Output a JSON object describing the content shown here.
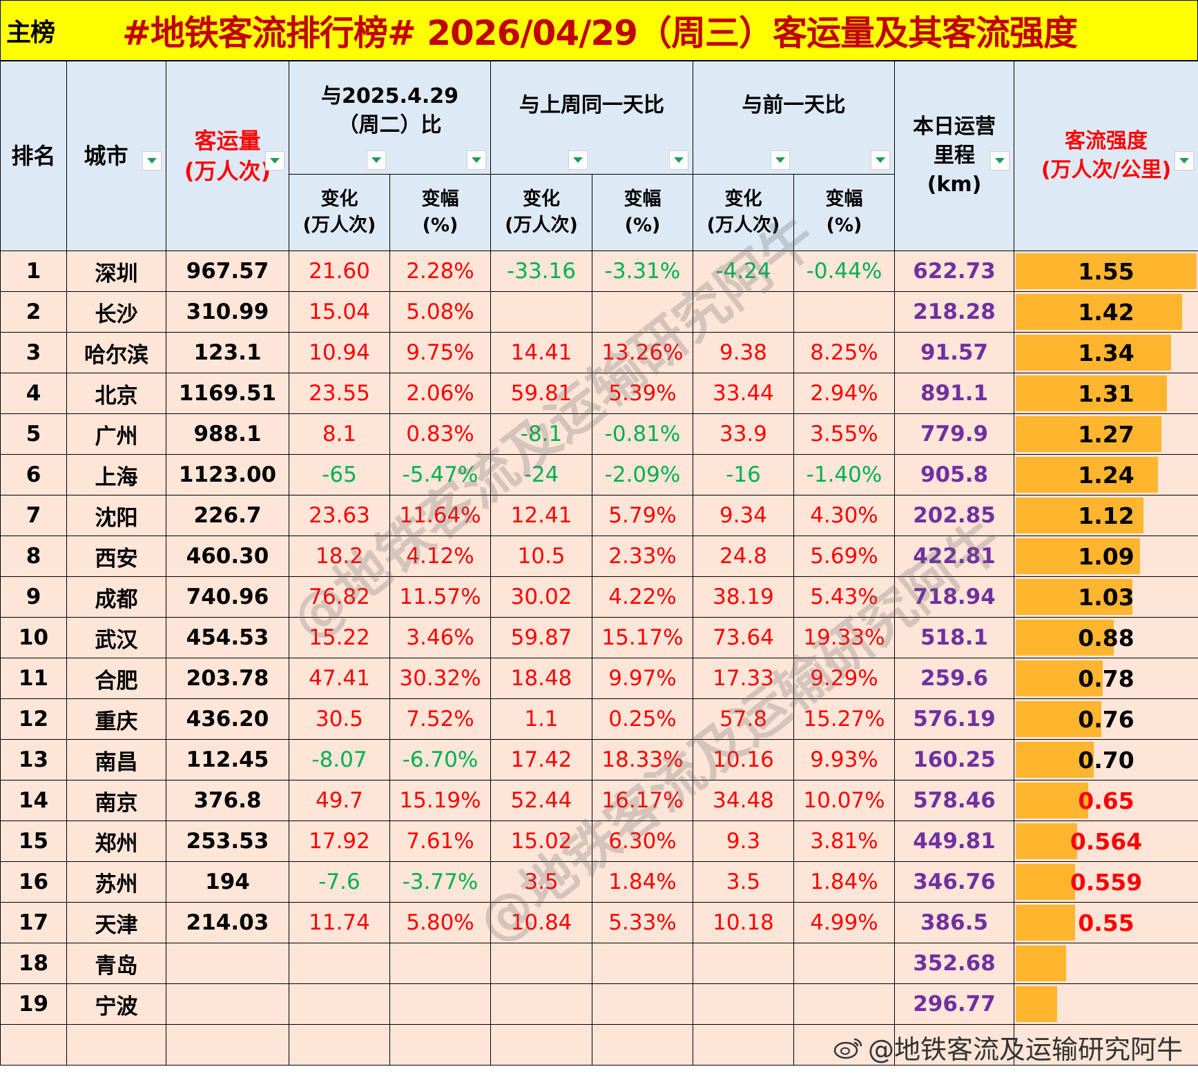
{
  "title_bar": {
    "label": "主榜",
    "title": "#地铁客流排行榜# 2026/04/29（周三）客运量及其客流强度"
  },
  "headers": {
    "rank": "排名",
    "city": "城市",
    "volume": "客运量",
    "volume_unit": "(万人次)",
    "vs_last_year": "与2025.4.29（周二）比",
    "vs_last_week": "与上周同一天比",
    "vs_prev_day": "与前一天比",
    "change": "变化",
    "change_unit": "(万人次)",
    "pct": "变幅",
    "pct_unit": "(%)",
    "mileage": "本日运营里程",
    "mileage_unit": "(km)",
    "intensity": "客流强度",
    "intensity_unit": "(万人次/公里)"
  },
  "colors": {
    "title_bg": "#ffff00",
    "title_text": "#c00000",
    "header_bg": "#dde9f5",
    "row_bg": "#fde5d8",
    "positive": "#ff0000",
    "negative": "#00b050",
    "mileage": "#7030a0",
    "bar": "#ffb52e",
    "filter_arrow": "#1f9a5b"
  },
  "rows": [
    {
      "rank": "1",
      "city": "深圳",
      "volume": "967.57",
      "ly_chg": "21.60",
      "ly_pct": "2.28%",
      "lw_chg": "-33.16",
      "lw_pct": "-3.31%",
      "pd_chg": "-4.24",
      "pd_pct": "-0.44%",
      "mileage": "622.73",
      "intensity": "1.55"
    },
    {
      "rank": "2",
      "city": "长沙",
      "volume": "310.99",
      "ly_chg": "15.04",
      "ly_pct": "5.08%",
      "lw_chg": "",
      "lw_pct": "",
      "pd_chg": "",
      "pd_pct": "",
      "mileage": "218.28",
      "intensity": "1.42"
    },
    {
      "rank": "3",
      "city": "哈尔滨",
      "volume": "123.1",
      "ly_chg": "10.94",
      "ly_pct": "9.75%",
      "lw_chg": "14.41",
      "lw_pct": "13.26%",
      "pd_chg": "9.38",
      "pd_pct": "8.25%",
      "mileage": "91.57",
      "intensity": "1.34"
    },
    {
      "rank": "4",
      "city": "北京",
      "volume": "1169.51",
      "ly_chg": "23.55",
      "ly_pct": "2.06%",
      "lw_chg": "59.81",
      "lw_pct": "5.39%",
      "pd_chg": "33.44",
      "pd_pct": "2.94%",
      "mileage": "891.1",
      "intensity": "1.31"
    },
    {
      "rank": "5",
      "city": "广州",
      "volume": "988.1",
      "ly_chg": "8.1",
      "ly_pct": "0.83%",
      "lw_chg": "-8.1",
      "lw_pct": "-0.81%",
      "pd_chg": "33.9",
      "pd_pct": "3.55%",
      "mileage": "779.9",
      "intensity": "1.27"
    },
    {
      "rank": "6",
      "city": "上海",
      "volume": "1123.00",
      "ly_chg": "-65",
      "ly_pct": "-5.47%",
      "lw_chg": "-24",
      "lw_pct": "-2.09%",
      "pd_chg": "-16",
      "pd_pct": "-1.40%",
      "mileage": "905.8",
      "intensity": "1.24"
    },
    {
      "rank": "7",
      "city": "沈阳",
      "volume": "226.7",
      "ly_chg": "23.63",
      "ly_pct": "11.64%",
      "lw_chg": "12.41",
      "lw_pct": "5.79%",
      "pd_chg": "9.34",
      "pd_pct": "4.30%",
      "mileage": "202.85",
      "intensity": "1.12"
    },
    {
      "rank": "8",
      "city": "西安",
      "volume": "460.30",
      "ly_chg": "18.2",
      "ly_pct": "4.12%",
      "lw_chg": "10.5",
      "lw_pct": "2.33%",
      "pd_chg": "24.8",
      "pd_pct": "5.69%",
      "mileage": "422.81",
      "intensity": "1.09"
    },
    {
      "rank": "9",
      "city": "成都",
      "volume": "740.96",
      "ly_chg": "76.82",
      "ly_pct": "11.57%",
      "lw_chg": "30.02",
      "lw_pct": "4.22%",
      "pd_chg": "38.19",
      "pd_pct": "5.43%",
      "mileage": "718.94",
      "intensity": "1.03"
    },
    {
      "rank": "10",
      "city": "武汉",
      "volume": "454.53",
      "ly_chg": "15.22",
      "ly_pct": "3.46%",
      "lw_chg": "59.87",
      "lw_pct": "15.17%",
      "pd_chg": "73.64",
      "pd_pct": "19.33%",
      "mileage": "518.1",
      "intensity": "0.88"
    },
    {
      "rank": "11",
      "city": "合肥",
      "volume": "203.78",
      "ly_chg": "47.41",
      "ly_pct": "30.32%",
      "lw_chg": "18.48",
      "lw_pct": "9.97%",
      "pd_chg": "17.33",
      "pd_pct": "9.29%",
      "mileage": "259.6",
      "intensity": "0.78"
    },
    {
      "rank": "12",
      "city": "重庆",
      "volume": "436.20",
      "ly_chg": "30.5",
      "ly_pct": "7.52%",
      "lw_chg": "1.1",
      "lw_pct": "0.25%",
      "pd_chg": "57.8",
      "pd_pct": "15.27%",
      "mileage": "576.19",
      "intensity": "0.76"
    },
    {
      "rank": "13",
      "city": "南昌",
      "volume": "112.45",
      "ly_chg": "-8.07",
      "ly_pct": "-6.70%",
      "lw_chg": "17.42",
      "lw_pct": "18.33%",
      "pd_chg": "10.16",
      "pd_pct": "9.93%",
      "mileage": "160.25",
      "intensity": "0.70"
    },
    {
      "rank": "14",
      "city": "南京",
      "volume": "376.8",
      "ly_chg": "49.7",
      "ly_pct": "15.19%",
      "lw_chg": "52.44",
      "lw_pct": "16.17%",
      "pd_chg": "34.48",
      "pd_pct": "10.07%",
      "mileage": "578.46",
      "intensity": "0.65"
    },
    {
      "rank": "15",
      "city": "郑州",
      "volume": "253.53",
      "ly_chg": "17.92",
      "ly_pct": "7.61%",
      "lw_chg": "15.02",
      "lw_pct": "6.30%",
      "pd_chg": "9.3",
      "pd_pct": "3.81%",
      "mileage": "449.81",
      "intensity": "0.564"
    },
    {
      "rank": "16",
      "city": "苏州",
      "volume": "194",
      "ly_chg": "-7.6",
      "ly_pct": "-3.77%",
      "lw_chg": "3.5",
      "lw_pct": "1.84%",
      "pd_chg": "3.5",
      "pd_pct": "1.84%",
      "mileage": "346.76",
      "intensity": "0.559"
    },
    {
      "rank": "17",
      "city": "天津",
      "volume": "214.03",
      "ly_chg": "11.74",
      "ly_pct": "5.80%",
      "lw_chg": "10.84",
      "lw_pct": "5.33%",
      "pd_chg": "10.18",
      "pd_pct": "4.99%",
      "mileage": "386.5",
      "intensity": "0.55"
    },
    {
      "rank": "18",
      "city": "青岛",
      "volume": "",
      "ly_chg": "",
      "ly_pct": "",
      "lw_chg": "",
      "lw_pct": "",
      "pd_chg": "",
      "pd_pct": "",
      "mileage": "352.68",
      "intensity": ""
    },
    {
      "rank": "19",
      "city": "宁波",
      "volume": "",
      "ly_chg": "",
      "ly_pct": "",
      "lw_chg": "",
      "lw_pct": "",
      "pd_chg": "",
      "pd_pct": "",
      "mileage": "296.77",
      "intensity": ""
    }
  ],
  "bar_widths_pct": [
    100,
    92,
    86,
    84,
    81,
    79,
    71,
    69,
    65,
    55,
    49,
    48,
    44,
    41,
    35,
    34,
    34,
    29,
    24
  ],
  "intensity_red_rows": [
    13,
    14,
    15,
    16
  ],
  "watermark": {
    "text": "@地铁客流及运输研究阿牛",
    "credit": "@地铁客流及运输研究阿牛"
  }
}
